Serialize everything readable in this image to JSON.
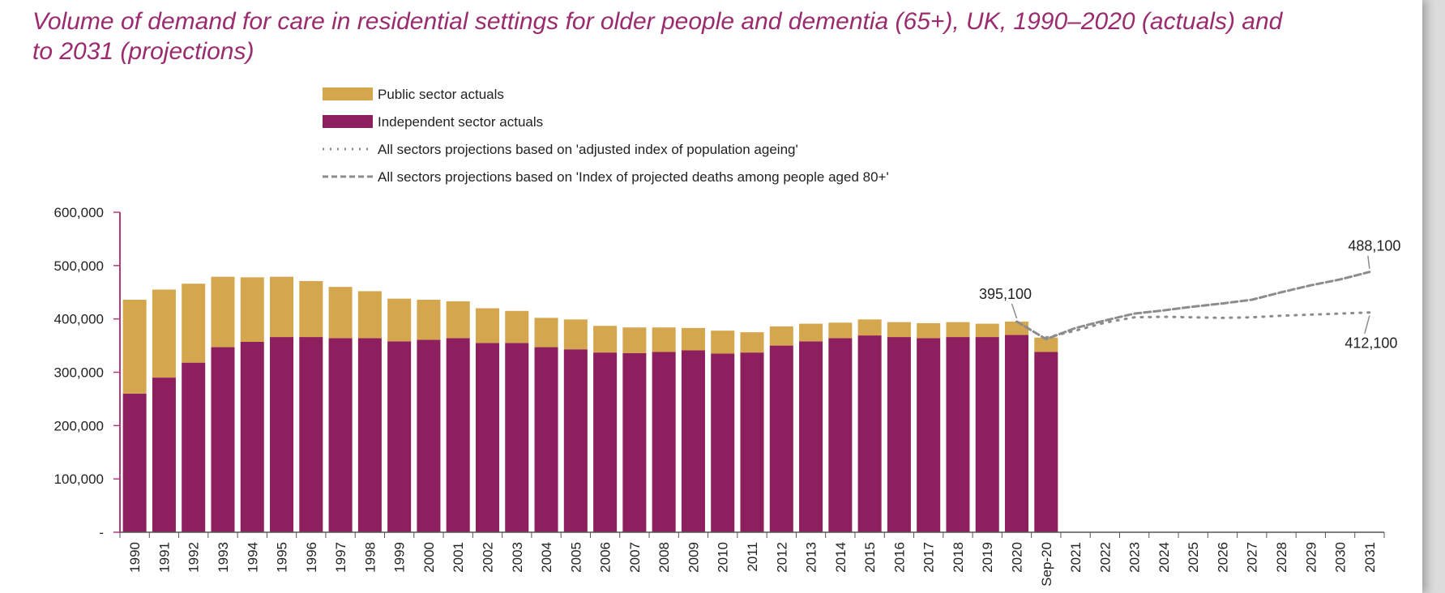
{
  "colors": {
    "public": "#d4a74e",
    "independent": "#8e1f5f",
    "projection": "#8c8c8c",
    "axis": "#b23a7c",
    "title": "#9a2b6e"
  },
  "chart_data": {
    "type": "bar",
    "stacked": true,
    "title": "Volume of demand for care in residential settings for older people and dementia (65+), UK, 1990–2020 (actuals) and to 2031 (projections)",
    "ylim": [
      0,
      600000
    ],
    "yticks": [
      0,
      100000,
      200000,
      300000,
      400000,
      500000,
      600000
    ],
    "ytick_labels": [
      "-",
      "100,000",
      "200,000",
      "300,000",
      "400,000",
      "500,000",
      "600,000"
    ],
    "categories": [
      "1990",
      "1991",
      "1992",
      "1993",
      "1994",
      "1995",
      "1996",
      "1997",
      "1998",
      "1999",
      "2000",
      "2001",
      "2002",
      "2003",
      "2004",
      "2005",
      "2006",
      "2007",
      "2008",
      "2009",
      "2010",
      "2011",
      "2012",
      "2013",
      "2014",
      "2015",
      "2016",
      "2017",
      "2018",
      "2019",
      "2020",
      "Sep-20",
      "2021",
      "2022",
      "2023",
      "2024",
      "2025",
      "2026",
      "2027",
      "2028",
      "2029",
      "2030",
      "2031"
    ],
    "series": [
      {
        "name": "Independent sector actuals",
        "color": "#8e1f5f",
        "values": [
          260000,
          290000,
          318000,
          347000,
          357000,
          366000,
          366000,
          364000,
          364000,
          358000,
          361000,
          364000,
          355000,
          355000,
          347000,
          343000,
          337000,
          336000,
          338000,
          341000,
          335000,
          337000,
          350000,
          358000,
          364000,
          369000,
          366000,
          364000,
          366000,
          366000,
          370000,
          338000,
          null,
          null,
          null,
          null,
          null,
          null,
          null,
          null,
          null,
          null,
          null
        ]
      },
      {
        "name": "Public sector actuals",
        "color": "#d4a74e",
        "values": [
          176000,
          165000,
          148000,
          132000,
          121000,
          113000,
          105000,
          96000,
          88000,
          80000,
          75000,
          69000,
          65000,
          60000,
          55000,
          56000,
          50000,
          48000,
          46000,
          42000,
          43000,
          38000,
          36000,
          33000,
          29000,
          30000,
          28000,
          28000,
          28000,
          25000,
          25000,
          27000,
          null,
          null,
          null,
          null,
          null,
          null,
          null,
          null,
          null,
          null,
          null
        ]
      }
    ],
    "projections": [
      {
        "name": "All sectors projections based on 'adjusted index of population ageing'",
        "style": "dotted",
        "x": [
          "Sep-20",
          "2021",
          "2022",
          "2023",
          "2024",
          "2025",
          "2026",
          "2027",
          "2028",
          "2029",
          "2030",
          "2031"
        ],
        "values": [
          365000,
          378000,
          393000,
          403000,
          404000,
          403000,
          402000,
          403000,
          406000,
          408000,
          410000,
          412100
        ]
      },
      {
        "name": "All sectors projections based on 'Index of projected deaths among people aged 80+'",
        "style": "dashed",
        "x": [
          "2020",
          "Sep-20",
          "2021",
          "2022",
          "2023",
          "2024",
          "2025",
          "2026",
          "2027",
          "2028",
          "2029",
          "2030",
          "2031"
        ],
        "values": [
          395100,
          362000,
          383000,
          397000,
          410000,
          416000,
          423000,
          429000,
          436000,
          450000,
          463000,
          474000,
          488100
        ]
      }
    ],
    "annotations": [
      {
        "text": "395,100",
        "category": "2020",
        "value": 395100
      },
      {
        "text": "488,100",
        "category": "2031",
        "value": 488100
      },
      {
        "text": "412,100",
        "category": "2031",
        "value": 412100
      }
    ],
    "legend": {
      "placement": "top",
      "items": [
        {
          "label": "Public sector actuals",
          "kind": "swatch",
          "color": "#d4a74e"
        },
        {
          "label": "Independent sector actuals",
          "kind": "swatch",
          "color": "#8e1f5f"
        },
        {
          "label": "All sectors projections based on 'adjusted index of population ageing'",
          "kind": "dotted"
        },
        {
          "label": "All sectors projections based on 'Index of projected deaths among people aged 80+'",
          "kind": "dashed"
        }
      ]
    }
  }
}
